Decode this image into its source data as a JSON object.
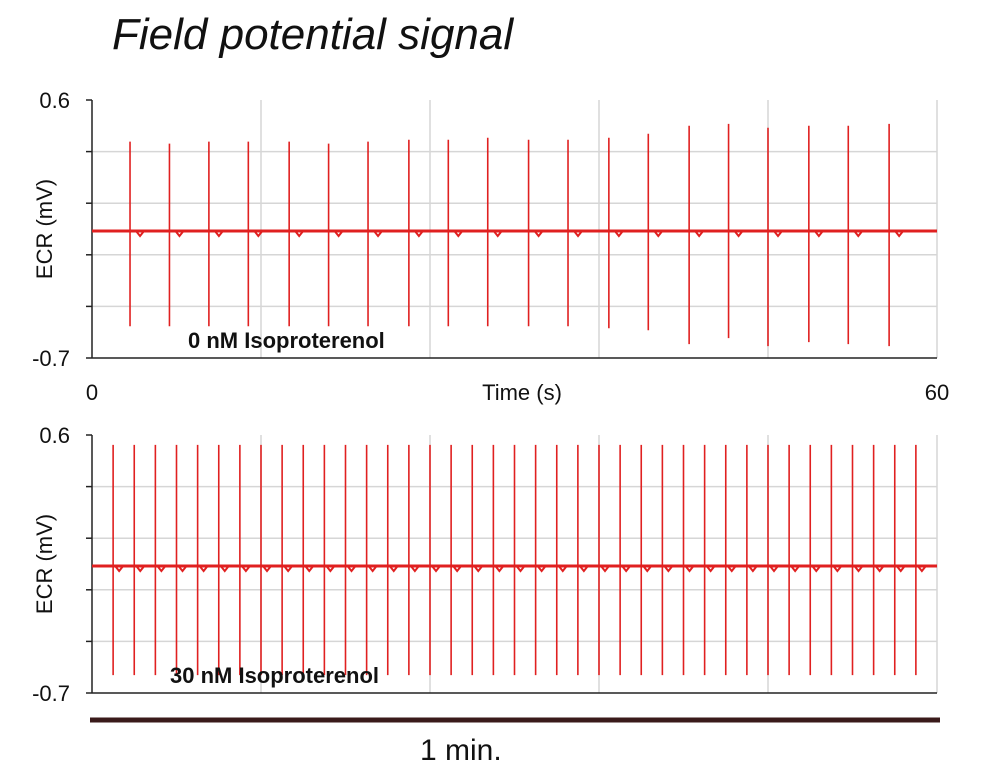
{
  "title": "Field potential signal",
  "scale_bar_label": "1 min.",
  "trace_color": "#e02020",
  "chart_data": [
    {
      "type": "line",
      "ylabel": "ECR (mV)",
      "xlabel": "Time (s)",
      "xlim": [
        0,
        60
      ],
      "ylim": [
        -0.7,
        0.6
      ],
      "yticks": [
        "0.6",
        "-0.7"
      ],
      "xticks": [
        "0",
        "60"
      ],
      "annotation": "0 nM Isoproterenol",
      "baseline": -0.06,
      "grid": true,
      "spikes": [
        {
          "t": 2.7,
          "max": 0.39,
          "min": -0.54
        },
        {
          "t": 5.5,
          "max": 0.38,
          "min": -0.54
        },
        {
          "t": 8.3,
          "max": 0.39,
          "min": -0.54
        },
        {
          "t": 11.1,
          "max": 0.39,
          "min": -0.54
        },
        {
          "t": 14.0,
          "max": 0.39,
          "min": -0.54
        },
        {
          "t": 16.8,
          "max": 0.38,
          "min": -0.54
        },
        {
          "t": 19.6,
          "max": 0.39,
          "min": -0.54
        },
        {
          "t": 22.5,
          "max": 0.4,
          "min": -0.54
        },
        {
          "t": 25.3,
          "max": 0.4,
          "min": -0.54
        },
        {
          "t": 28.1,
          "max": 0.41,
          "min": -0.54
        },
        {
          "t": 31.0,
          "max": 0.4,
          "min": -0.54
        },
        {
          "t": 33.8,
          "max": 0.4,
          "min": -0.54
        },
        {
          "t": 36.7,
          "max": 0.41,
          "min": -0.55
        },
        {
          "t": 39.5,
          "max": 0.43,
          "min": -0.56
        },
        {
          "t": 42.4,
          "max": 0.47,
          "min": -0.63
        },
        {
          "t": 45.2,
          "max": 0.48,
          "min": -0.6
        },
        {
          "t": 48.0,
          "max": 0.46,
          "min": -0.64
        },
        {
          "t": 50.9,
          "max": 0.47,
          "min": -0.62
        },
        {
          "t": 53.7,
          "max": 0.47,
          "min": -0.63
        },
        {
          "t": 56.6,
          "max": 0.48,
          "min": -0.64
        }
      ]
    },
    {
      "type": "line",
      "ylabel": "ECR (mV)",
      "xlim": [
        0,
        60
      ],
      "ylim": [
        -0.7,
        0.6
      ],
      "yticks": [
        "0.6",
        "-0.7"
      ],
      "annotation": "30 nM Isoproterenol",
      "baseline": -0.06,
      "grid": true,
      "spikes": [
        {
          "t": 1.5,
          "max": 0.55,
          "min": -0.61
        },
        {
          "t": 3.0,
          "max": 0.55,
          "min": -0.61
        },
        {
          "t": 4.5,
          "max": 0.55,
          "min": -0.61
        },
        {
          "t": 6.0,
          "max": 0.55,
          "min": -0.61
        },
        {
          "t": 7.5,
          "max": 0.55,
          "min": -0.61
        },
        {
          "t": 9.0,
          "max": 0.55,
          "min": -0.61
        },
        {
          "t": 10.5,
          "max": 0.55,
          "min": -0.61
        },
        {
          "t": 12.0,
          "max": 0.55,
          "min": -0.61
        },
        {
          "t": 13.5,
          "max": 0.55,
          "min": -0.61
        },
        {
          "t": 15.0,
          "max": 0.55,
          "min": -0.61
        },
        {
          "t": 16.5,
          "max": 0.55,
          "min": -0.61
        },
        {
          "t": 18.0,
          "max": 0.55,
          "min": -0.61
        },
        {
          "t": 19.5,
          "max": 0.55,
          "min": -0.61
        },
        {
          "t": 21.0,
          "max": 0.55,
          "min": -0.61
        },
        {
          "t": 22.5,
          "max": 0.55,
          "min": -0.61
        },
        {
          "t": 24.0,
          "max": 0.55,
          "min": -0.61
        },
        {
          "t": 25.5,
          "max": 0.55,
          "min": -0.61
        },
        {
          "t": 27.0,
          "max": 0.55,
          "min": -0.61
        },
        {
          "t": 28.5,
          "max": 0.55,
          "min": -0.61
        },
        {
          "t": 30.0,
          "max": 0.55,
          "min": -0.61
        },
        {
          "t": 31.5,
          "max": 0.55,
          "min": -0.61
        },
        {
          "t": 33.0,
          "max": 0.55,
          "min": -0.61
        },
        {
          "t": 34.5,
          "max": 0.55,
          "min": -0.61
        },
        {
          "t": 36.0,
          "max": 0.55,
          "min": -0.61
        },
        {
          "t": 37.5,
          "max": 0.55,
          "min": -0.61
        },
        {
          "t": 39.0,
          "max": 0.55,
          "min": -0.61
        },
        {
          "t": 40.5,
          "max": 0.55,
          "min": -0.61
        },
        {
          "t": 42.0,
          "max": 0.55,
          "min": -0.61
        },
        {
          "t": 43.5,
          "max": 0.55,
          "min": -0.61
        },
        {
          "t": 45.0,
          "max": 0.55,
          "min": -0.61
        },
        {
          "t": 46.5,
          "max": 0.55,
          "min": -0.61
        },
        {
          "t": 48.0,
          "max": 0.55,
          "min": -0.61
        },
        {
          "t": 49.5,
          "max": 0.55,
          "min": -0.61
        },
        {
          "t": 51.0,
          "max": 0.55,
          "min": -0.61
        },
        {
          "t": 52.5,
          "max": 0.55,
          "min": -0.61
        },
        {
          "t": 54.0,
          "max": 0.55,
          "min": -0.61
        },
        {
          "t": 55.5,
          "max": 0.55,
          "min": -0.61
        },
        {
          "t": 57.0,
          "max": 0.55,
          "min": -0.61
        },
        {
          "t": 58.5,
          "max": 0.55,
          "min": -0.61
        }
      ]
    }
  ]
}
